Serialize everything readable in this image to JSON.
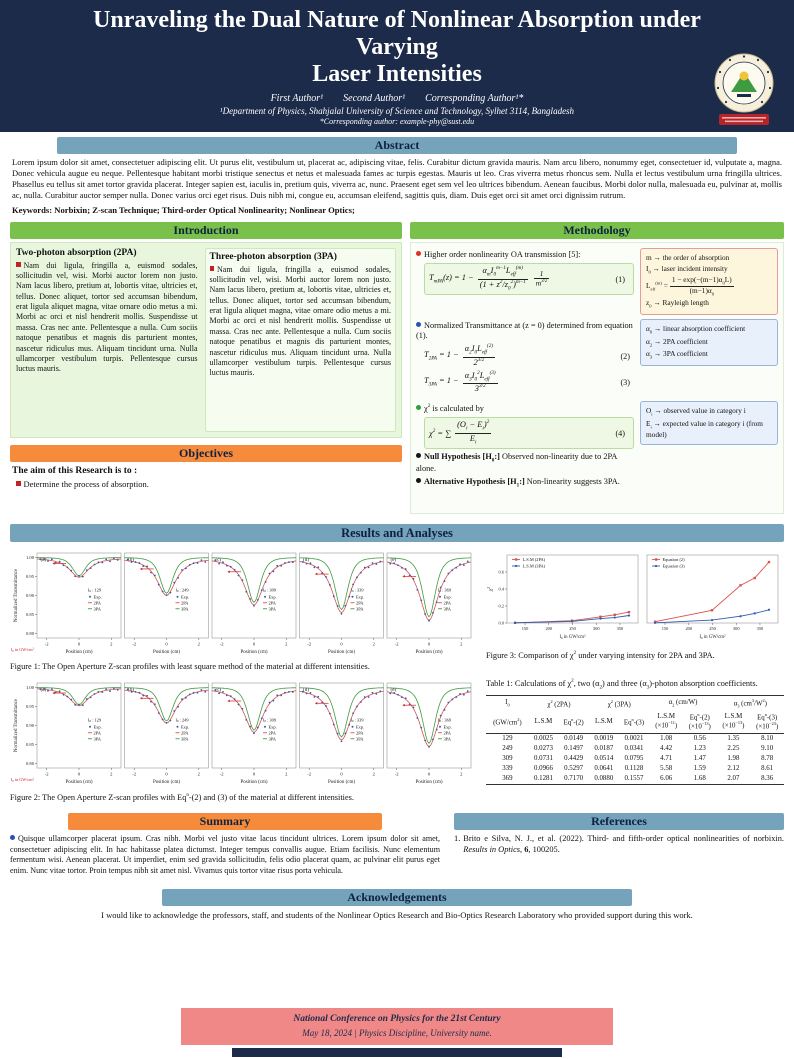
{
  "theme": {
    "navy": "#1c2b4a",
    "steel": "#74a3bb",
    "green": "#79c14a",
    "panel_green": "#e9f6de",
    "orange": "#f68b3c",
    "salmon": "#f08888",
    "red_accent": "#d9534f",
    "blue_accent": "#2f5bb0",
    "green_accent": "#3f9b41"
  },
  "header": {
    "title_line1": "Unraveling the Dual Nature of Nonlinear Absorption under Varying",
    "title_line2": "Laser Intensities",
    "authors": [
      "First Author¹",
      "Second Author¹",
      "Corresponding Author¹*"
    ],
    "affiliation": "¹Department of Physics, Shahjalal University of Science and Technology, Sylhet 3114, Bangladesh",
    "corresponding": "*Corresponding author: example-phy@sust.edu"
  },
  "abstract": {
    "title": "Abstract",
    "text": "Lorem ipsum dolor sit amet, consectetuer adipiscing elit. Ut purus elit, vestibulum ut, placerat ac, adipiscing vitae, felis. Curabitur dictum gravida mauris. Nam arcu libero, nonummy eget, consectetuer id, vulputate a, magna. Donec vehicula augue eu neque. Pellentesque habitant morbi tristique senectus et netus et malesuada fames ac turpis egestas. Mauris ut leo. Cras viverra metus rhoncus sem. Nulla et lectus vestibulum urna fringilla ultrices. Phasellus eu tellus sit amet tortor gravida placerat. Integer sapien est, iaculis in, pretium quis, viverra ac, nunc. Praesent eget sem vel leo ultrices bibendum. Aenean faucibus. Morbi dolor nulla, malesuada eu, pulvinar at, mollis ac, nulla. Curabitur auctor semper nulla. Donec varius orci eget risus. Duis nibh mi, congue eu, accumsan eleifend, sagittis quis, diam. Duis eget orci sit amet orci dignissim rutrum.",
    "keywords": "Keywords: Norbixin; Z-scan Technique; Third-order Optical Nonlinearity; Nonlinear Optics;"
  },
  "introduction": {
    "title": "Introduction",
    "sections": [
      {
        "heading": "Two-photon absorption (2PA)",
        "text": "Nam dui ligula, fringilla a, euismod sodales, sollicitudin vel, wisi. Morbi auctor lorem non justo. Nam lacus libero, pretium at, lobortis vitae, ultricies et, tellus. Donec aliquet, tortor sed accumsan bibendum, erat ligula aliquet magna, vitae ornare odio metus a mi. Morbi ac orci et nisl hendrerit mollis. Suspendisse ut massa. Cras nec ante. Pellentesque a nulla. Cum sociis natoque penatibus et magnis dis parturient montes, nascetur ridiculus mus. Aliquam tincidunt urna. Nulla ullamcorper vestibulum turpis. Pellentesque cursus luctus mauris."
      },
      {
        "heading": "Three-photon absorption (3PA)",
        "text": "Nam dui ligula, fringilla a, euismod sodales, sollicitudin vel, wisi. Morbi auctor lorem non justo. Nam lacus libero, pretium at, lobortis vitae, ultricies et, tellus. Donec aliquet, tortor sed accumsan bibendum, erat ligula aliquet magna, vitae ornare odio metus a mi. Morbi ac orci et nisl hendrerit mollis. Suspendisse ut massa. Cras nec ante. Pellentesque a nulla. Cum sociis natoque penatibus et magnis dis parturient montes, nascetur ridiculus mus. Aliquam tincidunt urna. Nulla ullamcorper vestibulum turpis. Pellentesque cursus luctus mauris."
      }
    ]
  },
  "objectives": {
    "title": "Objectives",
    "lead": "The aim of this Research is to :",
    "item": "Determine the process of absorption."
  },
  "methodology": {
    "title": "Methodology",
    "item1": "Higher order nonlinearity OA transmission [5]:",
    "eq1": {
      "lhs": "T<sub>mPA</sub>(z) = 1 −",
      "num1": "α<sub>m</sub>I<sub>0</sub><sup>m−1</sup>L<sub>eff</sub><sup>(m)</sup>",
      "den1": "(1 + z<sup>2</sup>/z<sub>0</sub><sup>2</sup>)<sup>m−1</sup>",
      "num2": "1",
      "den2": "m<sup>3/2</sup>",
      "number": "(1)"
    },
    "item2": "Normalized Transmittance at (z = 0) determined from equation (1).",
    "eq2": {
      "lhs": "T<sub>2PA</sub> = 1 −",
      "num": "α<sub>2</sub>I<sub>0</sub>L<sub>eff</sub><sup>(2)</sup>",
      "den": "2<sup>3/2</sup>",
      "number": "(2)"
    },
    "eq3": {
      "lhs": "T<sub>3PA</sub> = 1 −",
      "num": "α<sub>3</sub>I<sub>0</sub><sup>2</sup>L<sub>eff</sub><sup>(3)</sup>",
      "den": "3<sup>3/2</sup>",
      "number": "(3)"
    },
    "item3": "χ<sup>2</sup> is calculated by",
    "eq4": {
      "lhs": "χ<sup>2</sup> = ∑",
      "num": "(O<sub>i</sub> − E<sub>i</sub>)<sup>2</sup>",
      "den": "E<sub>i</sub>",
      "number": "(4)"
    },
    "item4": "<b>Null Hypothesis [H<sub>0</sub>:]</b> Observed non-linearity due to 2PA alone.",
    "item5": "<b>Alternative Hypothesis [H<sub>1</sub>:]</b> Non-linearity suggests 3PA.",
    "box1": {
      "l1": "m → the order of absorption",
      "l2": "I<sub>0</sub> → laser incident intensity",
      "l3pre": "L<sub>eff</sub><sup>(m)</sup> =",
      "l3num": "1 − exp(−(m−1)α<sub>0</sub>L)",
      "l3den": "(m−1)α<sub>0</sub>",
      "l4": "z<sub>0</sub> → Rayleigh length"
    },
    "box2": {
      "l1": "α<sub>0</sub> → linear absorption coefficient",
      "l2": "α<sub>2</sub> → 2PA coefficient",
      "l3": "α<sub>3</sub> → 3PA coefficient"
    },
    "box3": {
      "l1": "O<sub>i</sub> → observed value in category i",
      "l2": "E<sub>i</sub> → expected value in category i (from model)"
    }
  },
  "results": {
    "title": "Results and Analyses",
    "fig1_caption": "Figure 1: The Open Aperture Z-scan profiles with least square method of the material at different intensities.",
    "fig2_caption": "Figure 2: The Open Aperture Z-scan profiles with Eq<sup>n</sup>-(2) and (3) of the material at different intensities.",
    "fig3_caption": "Figure 3: Comparison of χ<sup>2</sup> under varying intensity for 2PA and 3PA."
  },
  "chart_data": [
    {
      "id": "figure1",
      "type": "line",
      "title": "Open Aperture Z-scan profiles (least square method)",
      "xlabel": "Position (cm)",
      "ylabel": "Normalized Transmittance",
      "intensity_note": "I0 in GW/cm2",
      "xlim": [
        -2.5,
        2.5
      ],
      "ylim": [
        0.79,
        1.01
      ],
      "xticks": [
        -2,
        0,
        2
      ],
      "yticks": [
        1.0,
        0.95,
        0.9,
        0.85,
        0.8
      ],
      "legend": [
        "Exp.",
        "2PA",
        "3PA"
      ],
      "subplots": [
        {
          "label": "(a)",
          "intensity": 129,
          "dip_2pa": 0.052,
          "dip_3pa": 0.048
        },
        {
          "label": "(b)",
          "intensity": 249,
          "dip_2pa": 0.1,
          "dip_3pa": 0.094
        },
        {
          "label": "(c)",
          "intensity": 309,
          "dip_2pa": 0.125,
          "dip_3pa": 0.118
        },
        {
          "label": "(d)",
          "intensity": 339,
          "dip_2pa": 0.145,
          "dip_3pa": 0.137
        },
        {
          "label": "(e)",
          "intensity": 369,
          "dip_2pa": 0.165,
          "dip_3pa": 0.156
        }
      ]
    },
    {
      "id": "figure2",
      "type": "line",
      "title": "Open Aperture Z-scan profiles with Eqn-(2) and (3)",
      "xlabel": "Position (cm)",
      "ylabel": "Normalized Transmittance",
      "intensity_note": "I0 in GW/cm2",
      "xlim": [
        -2.5,
        2.5
      ],
      "ylim": [
        0.79,
        1.01
      ],
      "xticks": [
        -2,
        0,
        2
      ],
      "yticks": [
        1.0,
        0.95,
        0.9,
        0.85,
        0.8
      ],
      "legend": [
        "Exp.",
        "2PA",
        "3PA"
      ],
      "subplots": [
        {
          "label": "(a)",
          "intensity": 129,
          "dip_2pa": 0.048,
          "dip_3pa": 0.045
        },
        {
          "label": "(b)",
          "intensity": 249,
          "dip_2pa": 0.094,
          "dip_3pa": 0.088
        },
        {
          "label": "(c)",
          "intensity": 309,
          "dip_2pa": 0.118,
          "dip_3pa": 0.112
        },
        {
          "label": "(d)",
          "intensity": 339,
          "dip_2pa": 0.138,
          "dip_3pa": 0.13
        },
        {
          "label": "(e)",
          "intensity": 369,
          "dip_2pa": 0.155,
          "dip_3pa": 0.147
        }
      ]
    },
    {
      "id": "figure3",
      "type": "line",
      "title": "Comparison of chi-squared under varying intensity for 2PA and 3PA",
      "xlabel": "I0 in GW/cm2",
      "ylabel": "chi2",
      "x": [
        129,
        249,
        309,
        339,
        369
      ],
      "xticks": [
        150,
        200,
        250,
        300,
        350
      ],
      "yticks": [
        0.0,
        0.2,
        0.4,
        0.6
      ],
      "ylim": [
        0,
        0.8
      ],
      "panels": [
        {
          "legend": [
            "L.S.M (2PA)",
            "L.S.M (3PA)"
          ],
          "series": [
            {
              "name": "L.S.M (2PA)",
              "values": [
                0.0025,
                0.0273,
                0.0731,
                0.0966,
                0.1281
              ]
            },
            {
              "name": "L.S.M (3PA)",
              "values": [
                0.0019,
                0.0187,
                0.0514,
                0.0641,
                0.088
              ]
            }
          ]
        },
        {
          "legend": [
            "Equation (2)",
            "Equation (3)"
          ],
          "series": [
            {
              "name": "Equation (2)",
              "values": [
                0.0149,
                0.1497,
                0.4429,
                0.5297,
                0.717
              ]
            },
            {
              "name": "Equation (3)",
              "values": [
                0.0021,
                0.0341,
                0.0795,
                0.1128,
                0.1557
              ]
            }
          ]
        }
      ]
    }
  ],
  "table1": {
    "caption": "Table 1: Calculations of χ<sup>2</sup>, two (α<sub>2</sub>) and three (α<sub>3</sub>)-photon absorption coefficients.",
    "group_headers": [
      "I<sub>0</sub>",
      "χ<sup>2</sup> (2PA)",
      "χ<sup>2</sup> (3PA)",
      "α<sub>2</sub> (cm/W)",
      "α<sub>3</sub> (cm<sup>3</sup>/W<sup>2</sup>)"
    ],
    "sub_headers": [
      "(GW/cm<sup>2</sup>)",
      "L.S.M",
      "Eq<sup>n</sup>-(2)",
      "L.S.M",
      "Eq<sup>n</sup>-(3)",
      "L.S.M<br>(×10<sup>−11</sup>)",
      "Eq<sup>n</sup>-(2)<br>(×10<sup>−13</sup>)",
      "L.S.M<br>(×10<sup>−13</sup>)",
      "Eq<sup>n</sup>-(3)<br>(×10<sup>−23</sup>)"
    ],
    "rows": [
      [
        "129",
        "0.0025",
        "0.0149",
        "0.0019",
        "0.0021",
        "1.08",
        "0.56",
        "1.35",
        "8.10"
      ],
      [
        "249",
        "0.0273",
        "0.1497",
        "0.0187",
        "0.0341",
        "4.42",
        "1.23",
        "2.25",
        "9.10"
      ],
      [
        "309",
        "0.0731",
        "0.4429",
        "0.0514",
        "0.0795",
        "4.71",
        "1.47",
        "1.98",
        "8.78"
      ],
      [
        "339",
        "0.0966",
        "0.5297",
        "0.0641",
        "0.1128",
        "5.58",
        "1.59",
        "2.12",
        "8.61"
      ],
      [
        "369",
        "0.1281",
        "0.7170",
        "0.0880",
        "0.1557",
        "6.06",
        "1.68",
        "2.07",
        "8.36"
      ]
    ]
  },
  "summary": {
    "title": "Summary",
    "text": "Quisque ullamcorper placerat ipsum. Cras nibh. Morbi vel justo vitae lacus tincidunt ultrices. Lorem ipsum dolor sit amet, consectetuer adipiscing elit. In hac habitasse platea dictumst. Integer tempus convallis augue. Etiam facilisis. Nunc elementum fermentum wisi. Aenean placerat. Ut imperdiet, enim sed gravida sollicitudin, felis odio placerat quam, ac pulvinar elit purus eget enim. Nunc vitae tortor. Proin tempus nibh sit amet nisl. Vivamus quis tortor vitae risus porta vehicula."
  },
  "references": {
    "title": "References",
    "num1": "1.",
    "item1": "Brito e Silva, N. J., et al. (2022). Third- and fifth-order optical nonlinearities of norbixin. <i>Results in Optics</i>, <b>6</b>, 100205."
  },
  "acknowledgements": {
    "title": "Acknowledgements",
    "text": "I would like to acknowledge the professors, staff, and students of the Nonlinear Optics Research and Bio-Optics Research Laboratory who provided support during this work."
  },
  "footer": {
    "line1": "National Conference on Physics for the 21st Century",
    "line2": "May 18, 2024  |  Physics Discipline, University name."
  }
}
